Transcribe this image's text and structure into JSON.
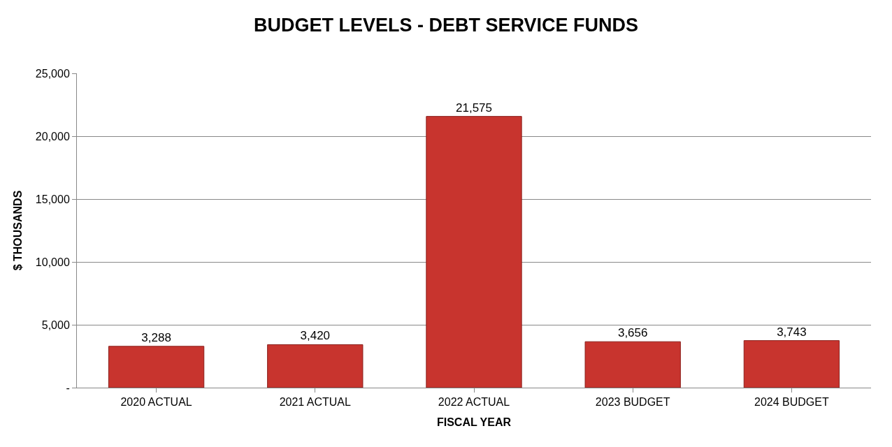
{
  "chart_data": {
    "type": "bar",
    "title": "BUDGET LEVELS - DEBT SERVICE FUNDS",
    "xlabel": "FISCAL YEAR",
    "ylabel": "$ THOUSANDS",
    "categories": [
      "2020 ACTUAL",
      "2021 ACTUAL",
      "2022 ACTUAL",
      "2023 BUDGET",
      "2024 BUDGET"
    ],
    "values": [
      3288,
      3420,
      21575,
      3656,
      3743
    ],
    "value_labels": [
      "3,288",
      "3,420",
      "21,575",
      "3,656",
      "3,743"
    ],
    "color": "#c8342e",
    "ylim": [
      0,
      25000
    ],
    "yticks": [
      {
        "value": 0,
        "label": "-"
      },
      {
        "value": 5000,
        "label": "5,000"
      },
      {
        "value": 10000,
        "label": "10,000"
      },
      {
        "value": 15000,
        "label": "15,000"
      },
      {
        "value": 20000,
        "label": "20,000"
      },
      {
        "value": 25000,
        "label": "25,000"
      }
    ],
    "grid": "y"
  }
}
